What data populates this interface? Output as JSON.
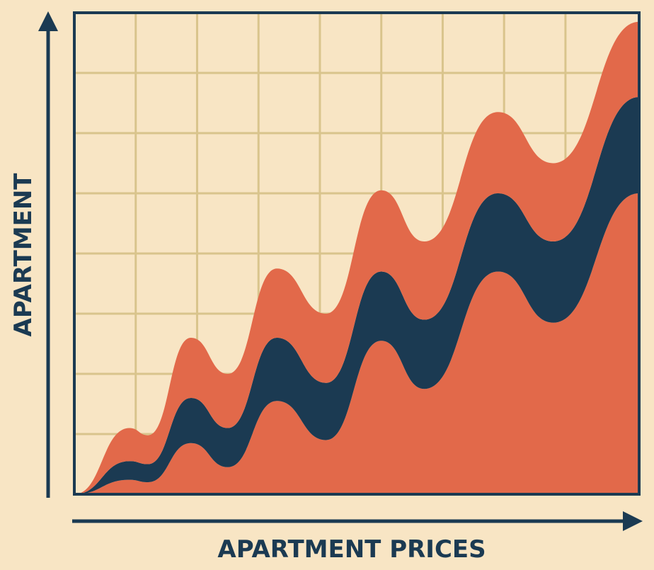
{
  "chart_data": {
    "type": "area",
    "stacked": true,
    "x_label": "APARTMENT PRICES",
    "y_label": "APARTMENT",
    "x": [
      0,
      0.9,
      1.2,
      1.9,
      2.5,
      3.3,
      4.1,
      5.0,
      5.7,
      6.9,
      7.8,
      9.2
    ],
    "series": [
      {
        "color": "#e2694a",
        "values": [
          0,
          0.24,
          0.2,
          0.85,
          0.45,
          1.55,
          0.9,
          2.55,
          1.75,
          3.7,
          2.85,
          5.0
        ]
      },
      {
        "color": "#1b3a52",
        "values": [
          0,
          0.31,
          0.3,
          0.75,
          0.65,
          1.05,
          0.95,
          1.15,
          1.15,
          1.3,
          1.35,
          1.6
        ]
      },
      {
        "color": "#e2694a",
        "values": [
          0,
          0.55,
          0.48,
          1.0,
          0.9,
          1.15,
          1.15,
          1.35,
          1.3,
          1.35,
          1.3,
          1.25
        ]
      }
    ],
    "xlim": [
      0,
      9.2
    ],
    "ylim": [
      0,
      8
    ],
    "xticks": [
      1,
      2,
      3,
      4,
      5,
      6,
      7,
      8
    ],
    "yticks": [
      1,
      2,
      3,
      4,
      5,
      6,
      7
    ],
    "grid": true,
    "grid_color": "#d9c48c",
    "background": "#f8e5c4",
    "axis_color": "#1b3a52"
  }
}
